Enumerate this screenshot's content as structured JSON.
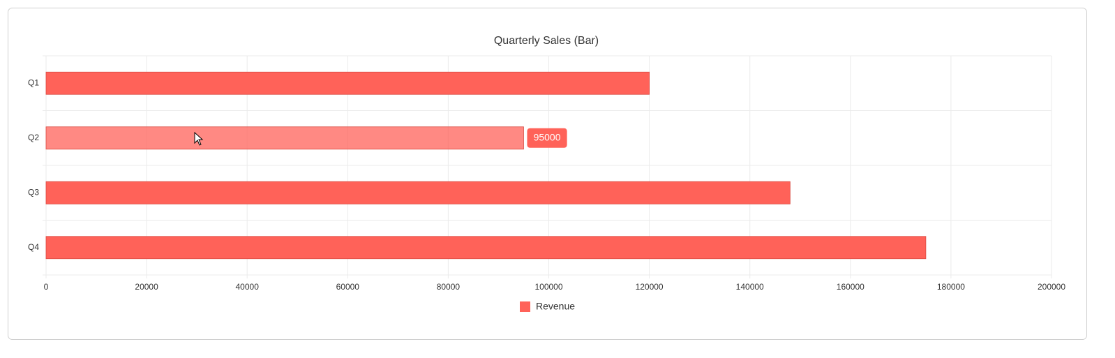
{
  "chart_data": {
    "type": "bar",
    "orientation": "horizontal",
    "title": "Quarterly Sales (Bar)",
    "categories": [
      "Q1",
      "Q2",
      "Q3",
      "Q4"
    ],
    "series": [
      {
        "name": "Revenue",
        "color": "#ff6259",
        "values": [
          120000,
          95000,
          148000,
          175000
        ]
      }
    ],
    "xlim": [
      0,
      200000
    ],
    "xticks": [
      0,
      20000,
      40000,
      60000,
      80000,
      100000,
      120000,
      140000,
      160000,
      180000,
      200000
    ],
    "grid": true,
    "legend": "bottom",
    "tooltip": 95000
  }
}
